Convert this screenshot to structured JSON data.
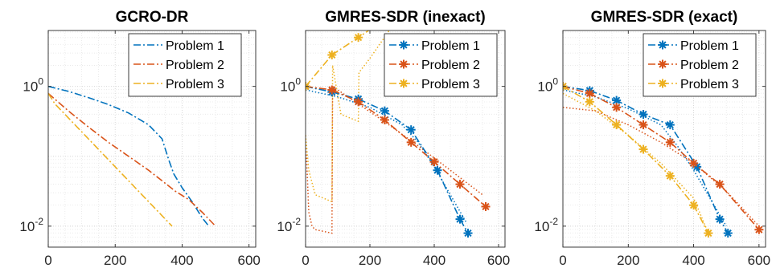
{
  "chart_data": [
    {
      "type": "line",
      "title": "GCRO-DR",
      "xlabel": "",
      "ylabel": "",
      "xlim": [
        0,
        620
      ],
      "ylim": [
        -2.3,
        0.8
      ],
      "yscale": "log",
      "xticks": [
        "0",
        "200",
        "400",
        "600"
      ],
      "yticks": [
        {
          "base": "10",
          "exp": "0",
          "value": 0
        },
        {
          "base": "10",
          "exp": "-2",
          "value": -2
        }
      ],
      "grid": true,
      "legend": "top-right",
      "series": [
        {
          "name": "Problem 1",
          "color": "#0072BD",
          "style": "dashdot",
          "marker": "none",
          "x": [
            0,
            60,
            120,
            180,
            240,
            300,
            340,
            360,
            375,
            400,
            430,
            460,
            480
          ],
          "y": [
            0.0,
            -0.07,
            -0.16,
            -0.26,
            -0.38,
            -0.55,
            -0.75,
            -1.05,
            -1.25,
            -1.45,
            -1.65,
            -1.88,
            -2.0
          ]
        },
        {
          "name": "Problem 2",
          "color": "#D95319",
          "style": "dashdot",
          "marker": "none",
          "x": [
            0,
            60,
            120,
            180,
            240,
            300,
            340,
            380,
            420,
            460,
            500
          ],
          "y": [
            -0.1,
            -0.35,
            -0.58,
            -0.8,
            -1.0,
            -1.2,
            -1.35,
            -1.5,
            -1.62,
            -1.8,
            -2.0
          ]
        },
        {
          "name": "Problem 3",
          "color": "#EDB120",
          "style": "dashdot",
          "marker": "none",
          "x": [
            0,
            20,
            60,
            120,
            180,
            240,
            300,
            340,
            370
          ],
          "y": [
            -0.1,
            -0.25,
            -0.45,
            -0.75,
            -1.05,
            -1.35,
            -1.65,
            -1.85,
            -2.0
          ]
        }
      ]
    },
    {
      "type": "line",
      "title": "GMRES-SDR (inexact)",
      "xlabel": "",
      "ylabel": "",
      "xlim": [
        0,
        620
      ],
      "ylim": [
        -2.3,
        0.8
      ],
      "yscale": "log",
      "xticks": [
        "0",
        "200",
        "400",
        "600"
      ],
      "yticks": [
        {
          "base": "10",
          "exp": "0",
          "value": 0
        },
        {
          "base": "10",
          "exp": "-2",
          "value": -2
        }
      ],
      "grid": true,
      "legend": "top-right",
      "series": [
        {
          "name": "Problem 1",
          "color": "#0072BD",
          "style": "dashdot",
          "marker": "*",
          "x": [
            0,
            82,
            164,
            246,
            328,
            410,
            480,
            505
          ],
          "y": [
            0.0,
            -0.08,
            -0.18,
            -0.35,
            -0.62,
            -1.2,
            -1.9,
            -2.1
          ]
        },
        {
          "name": "Problem 2",
          "color": "#D95319",
          "style": "dashdot",
          "marker": "*",
          "x": [
            0,
            82,
            164,
            246,
            328,
            400,
            480,
            560
          ],
          "y": [
            0.0,
            -0.05,
            -0.22,
            -0.48,
            -0.8,
            -1.08,
            -1.4,
            -1.72
          ]
        },
        {
          "name": "Problem 3",
          "color": "#EDB120",
          "style": "dashdot",
          "marker": "*",
          "x": [
            0,
            82,
            164,
            260
          ],
          "y": [
            0.0,
            0.45,
            0.7,
            1.0
          ]
        }
      ],
      "extra_lines": [
        {
          "color": "#0072BD",
          "style": "dotted",
          "x": [
            0,
            100,
            200,
            300,
            350,
            400,
            450,
            500
          ],
          "y": [
            -0.05,
            -0.15,
            -0.3,
            -0.55,
            -0.8,
            -1.15,
            -1.55,
            -1.95
          ]
        },
        {
          "color": "#D95319",
          "style": "dotted",
          "x": [
            0,
            10,
            20,
            30,
            82,
            84,
            164,
            250,
            350,
            450,
            550
          ],
          "y": [
            -0.7,
            -1.8,
            -2.0,
            -2.05,
            -2.1,
            0.0,
            -0.25,
            -0.52,
            -0.85,
            -1.2,
            -1.55
          ]
        },
        {
          "color": "#EDB120",
          "style": "dotted",
          "x": [
            0,
            10,
            30,
            82,
            84,
            110,
            164,
            166,
            200,
            260
          ],
          "y": [
            -0.7,
            -1.2,
            -1.55,
            -1.65,
            0.3,
            -0.4,
            -0.5,
            0.2,
            0.4,
            0.8
          ]
        }
      ]
    },
    {
      "type": "line",
      "title": "GMRES-SDR (exact)",
      "xlabel": "",
      "ylabel": "",
      "xlim": [
        0,
        620
      ],
      "ylim": [
        -2.3,
        0.8
      ],
      "yscale": "log",
      "xticks": [
        "0",
        "200",
        "400",
        "600"
      ],
      "yticks": [
        {
          "base": "10",
          "exp": "0",
          "value": 0
        },
        {
          "base": "10",
          "exp": "-2",
          "value": -2
        }
      ],
      "grid": true,
      "legend": "top-right",
      "series": [
        {
          "name": "Problem 1",
          "color": "#0072BD",
          "style": "dashdot",
          "marker": "*",
          "x": [
            0,
            82,
            164,
            246,
            328,
            410,
            480,
            505
          ],
          "y": [
            0.0,
            -0.06,
            -0.2,
            -0.4,
            -0.55,
            -1.15,
            -1.9,
            -2.1
          ]
        },
        {
          "name": "Problem 2",
          "color": "#D95319",
          "style": "dashdot",
          "marker": "*",
          "x": [
            0,
            82,
            164,
            246,
            328,
            400,
            480,
            600
          ],
          "y": [
            0.0,
            -0.1,
            -0.3,
            -0.55,
            -0.8,
            -1.1,
            -1.4,
            -2.05
          ]
        },
        {
          "name": "Problem 3",
          "color": "#EDB120",
          "style": "dashdot",
          "marker": "*",
          "x": [
            0,
            82,
            164,
            246,
            328,
            400,
            445
          ],
          "y": [
            0.0,
            -0.22,
            -0.55,
            -0.9,
            -1.28,
            -1.7,
            -2.1
          ]
        }
      ],
      "extra_lines": [
        {
          "color": "#0072BD",
          "style": "dotted",
          "x": [
            0,
            100,
            200,
            300,
            350,
            400,
            450,
            500
          ],
          "y": [
            -0.05,
            -0.15,
            -0.32,
            -0.55,
            -0.85,
            -1.2,
            -1.6,
            -2.0
          ]
        },
        {
          "color": "#D95319",
          "style": "dotted",
          "x": [
            0,
            100,
            200,
            300,
            400,
            500,
            600
          ],
          "y": [
            -0.3,
            -0.35,
            -0.55,
            -0.8,
            -1.1,
            -1.5,
            -2.0
          ]
        },
        {
          "color": "#EDB120",
          "style": "dotted",
          "x": [
            0,
            100,
            200,
            300,
            400,
            445
          ],
          "y": [
            -0.1,
            -0.35,
            -0.7,
            -1.1,
            -1.6,
            -2.1
          ]
        }
      ]
    }
  ]
}
